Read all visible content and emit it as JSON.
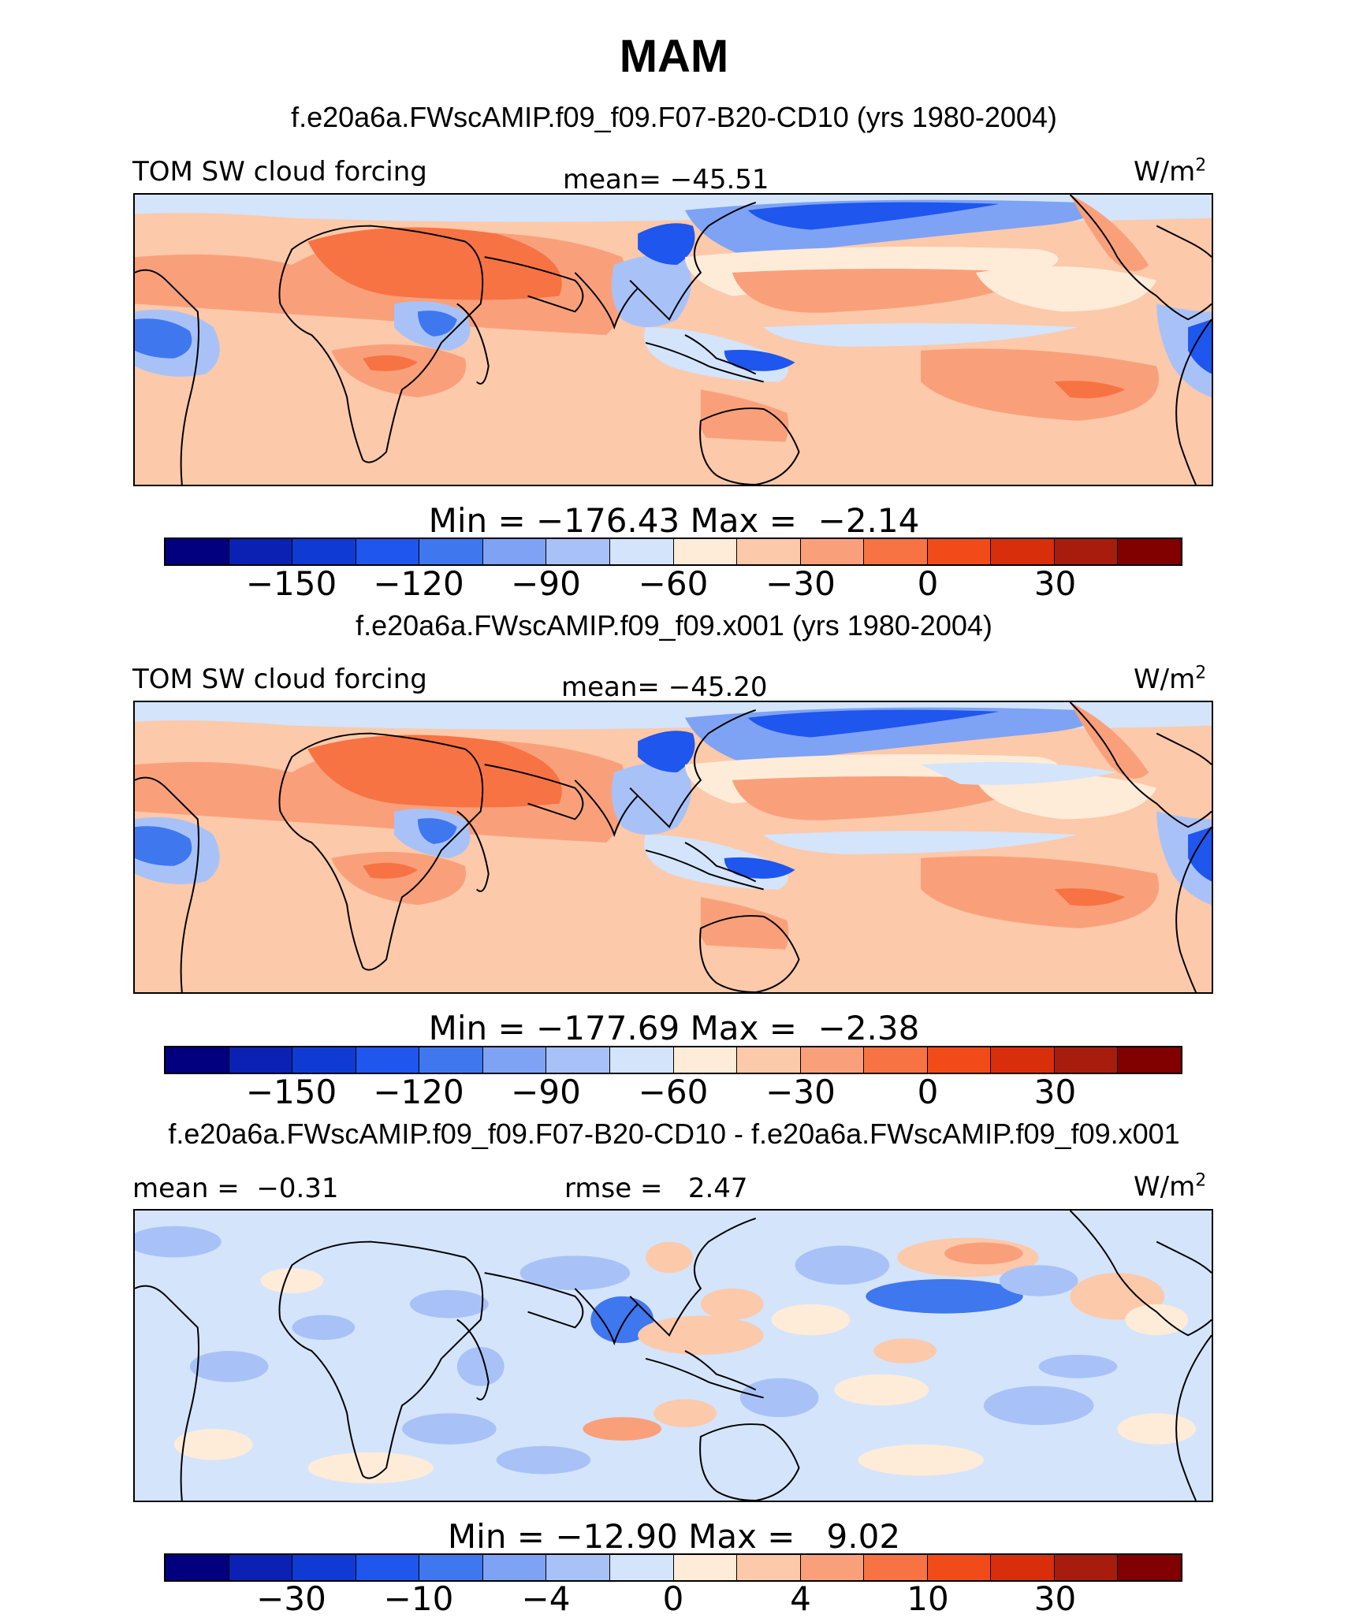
{
  "title": "MAM",
  "colors": [
    "#03007f",
    "#0a21b4",
    "#0f3ad3",
    "#1f56ed",
    "#3f77ef",
    "#7ea3f4",
    "#a8c2f8",
    "#d4e4fb",
    "#feecd9",
    "#fcc9aa",
    "#f9a07b",
    "#f77343",
    "#f24b1a",
    "#d92e0c",
    "#a81c0d",
    "#810000"
  ],
  "panels": [
    {
      "case_title": "f.e20a6a.FWscAMIP.f09_f09.F07-B20-CD10 (yrs 1980-2004)",
      "left_label": "TOM SW cloud forcing",
      "center_label": "mean= −45.51",
      "units": "W/m",
      "units_sup": "2",
      "minmax": "Min = −176.43 Max =  −2.14",
      "ticks": [
        "−150",
        "−120",
        "−90",
        "−60",
        "−30",
        "0",
        "30"
      ],
      "variant": "model"
    },
    {
      "case_title": "f.e20a6a.FWscAMIP.f09_f09.x001 (yrs 1980-2004)",
      "left_label": "TOM SW cloud forcing",
      "center_label": "mean= −45.20",
      "units": "W/m",
      "units_sup": "2",
      "minmax": "Min = −177.69 Max =  −2.38",
      "ticks": [
        "−150",
        "−120",
        "−90",
        "−60",
        "−30",
        "0",
        "30"
      ],
      "variant": "model"
    },
    {
      "case_title": "f.e20a6a.FWscAMIP.f09_f09.F07-B20-CD10 - f.e20a6a.FWscAMIP.f09_f09.x001",
      "left_label": "mean =  −0.31",
      "center_label": "rmse =   2.47",
      "units": "W/m",
      "units_sup": "2",
      "minmax": "Min = −12.90 Max =   9.02",
      "ticks": [
        "−30",
        "−10",
        "−4",
        "0",
        "4",
        "10",
        "30"
      ],
      "variant": "diff"
    }
  ]
}
